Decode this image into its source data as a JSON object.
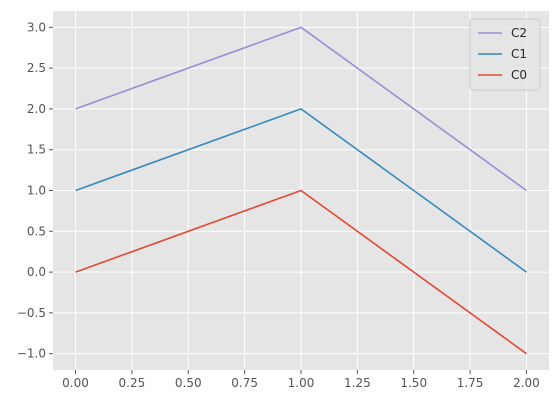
{
  "chart_data": {
    "type": "line",
    "x": [
      0,
      1,
      2
    ],
    "series": [
      {
        "name": "C0",
        "values": [
          0,
          1,
          -1
        ],
        "color": "#E24A33"
      },
      {
        "name": "C1",
        "values": [
          1,
          2,
          0
        ],
        "color": "#348ABD"
      },
      {
        "name": "C2",
        "values": [
          2,
          3,
          1
        ],
        "color": "#988ED5"
      }
    ],
    "xlim": [
      -0.1,
      2.1
    ],
    "ylim": [
      -1.2,
      3.2
    ],
    "x_ticks": [
      "0.00",
      "0.25",
      "0.50",
      "0.75",
      "1.00",
      "1.25",
      "1.50",
      "1.75",
      "2.00"
    ],
    "y_ticks": [
      "−1.0",
      "−0.5",
      "0.0",
      "0.5",
      "1.0",
      "1.5",
      "2.0",
      "2.5",
      "3.0"
    ],
    "legend_order": [
      "C2",
      "C1",
      "C0"
    ],
    "legend_position": "top-right",
    "grid": true,
    "style": "ggplot",
    "background_color": "#E5E5E5",
    "grid_color": "#FFFFFF"
  }
}
